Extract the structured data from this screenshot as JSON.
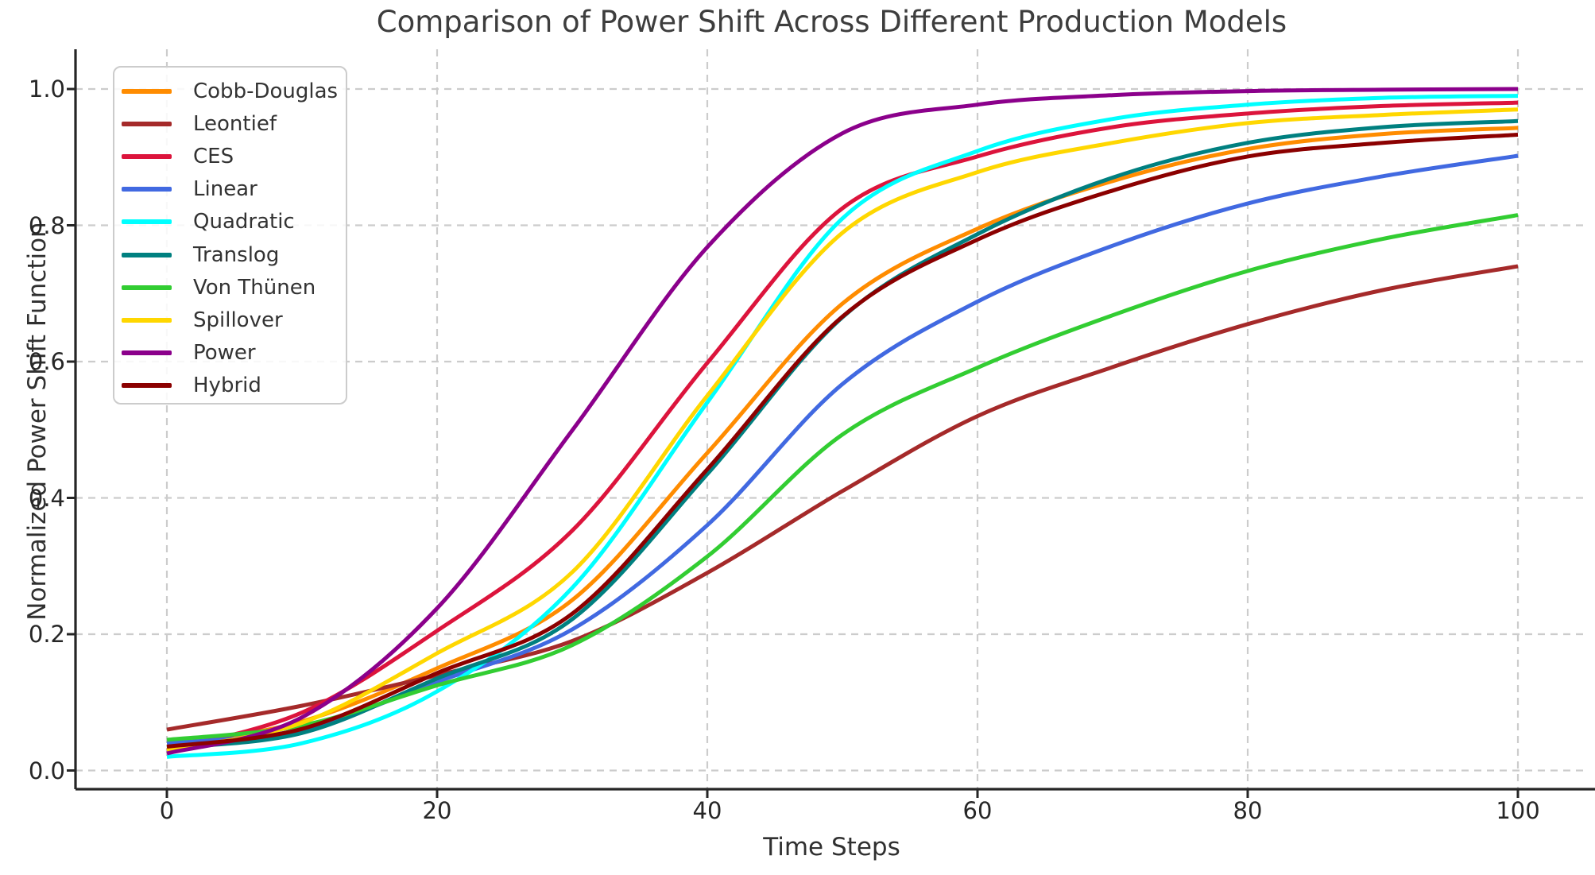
{
  "chart_data": {
    "type": "line",
    "title": "Comparison of Power Shift Across Different Production Models",
    "xlabel": "Time Steps",
    "ylabel": "Normalized Power Shift Function",
    "x": [
      0,
      10,
      20,
      30,
      40,
      50,
      60,
      70,
      80,
      90,
      100
    ],
    "series": [
      {
        "name": "Cobb-Douglas",
        "color": "#FF8C00",
        "values": [
          0.035,
          0.072,
          0.15,
          0.25,
          0.466,
          0.685,
          0.795,
          0.865,
          0.912,
          0.934,
          0.943
        ]
      },
      {
        "name": "Leontief",
        "color": "#A52A2A",
        "values": [
          0.06,
          0.095,
          0.14,
          0.19,
          0.29,
          0.41,
          0.52,
          0.592,
          0.655,
          0.705,
          0.74
        ]
      },
      {
        "name": "CES",
        "color": "#DC143C",
        "values": [
          0.03,
          0.085,
          0.205,
          0.352,
          0.598,
          0.825,
          0.901,
          0.944,
          0.964,
          0.975,
          0.98
        ]
      },
      {
        "name": "Linear",
        "color": "#4169E1",
        "values": [
          0.04,
          0.06,
          0.13,
          0.207,
          0.36,
          0.567,
          0.688,
          0.77,
          0.832,
          0.872,
          0.902
        ]
      },
      {
        "name": "Quadratic",
        "color": "#00FFFF",
        "values": [
          0.02,
          0.04,
          0.116,
          0.268,
          0.54,
          0.81,
          0.909,
          0.956,
          0.977,
          0.987,
          0.99
        ]
      },
      {
        "name": "Translog",
        "color": "#008080",
        "values": [
          0.033,
          0.055,
          0.135,
          0.222,
          0.435,
          0.665,
          0.787,
          0.87,
          0.921,
          0.944,
          0.953
        ]
      },
      {
        "name": "Von Thünen",
        "color": "#32CD32",
        "values": [
          0.045,
          0.066,
          0.125,
          0.184,
          0.314,
          0.493,
          0.591,
          0.668,
          0.733,
          0.78,
          0.815
        ]
      },
      {
        "name": "Spillover",
        "color": "#FFD700",
        "values": [
          0.03,
          0.07,
          0.172,
          0.291,
          0.55,
          0.789,
          0.878,
          0.921,
          0.95,
          0.962,
          0.97
        ]
      },
      {
        "name": "Power",
        "color": "#8B008B",
        "values": [
          0.025,
          0.078,
          0.238,
          0.499,
          0.768,
          0.935,
          0.977,
          0.991,
          0.997,
          0.999,
          1.0
        ]
      },
      {
        "name": "Hybrid",
        "color": "#8B0000",
        "values": [
          0.035,
          0.061,
          0.143,
          0.23,
          0.442,
          0.666,
          0.779,
          0.851,
          0.901,
          0.921,
          0.933
        ]
      }
    ],
    "xticks": [
      0,
      20,
      40,
      60,
      80,
      100
    ],
    "yticks": [
      0.0,
      0.2,
      0.4,
      0.6,
      0.8,
      1.0
    ],
    "xlim": [
      -6.8,
      104.8
    ],
    "ylim": [
      -0.028,
      1.058
    ],
    "grid": {
      "on": true,
      "style": "dashed",
      "color": "#cccccc"
    },
    "legend": {
      "position": "upper left"
    }
  },
  "colors": {
    "axis": "#262626",
    "title_text": "#3d3d3d",
    "tick_text": "#262626",
    "grid": "#cccccc"
  }
}
